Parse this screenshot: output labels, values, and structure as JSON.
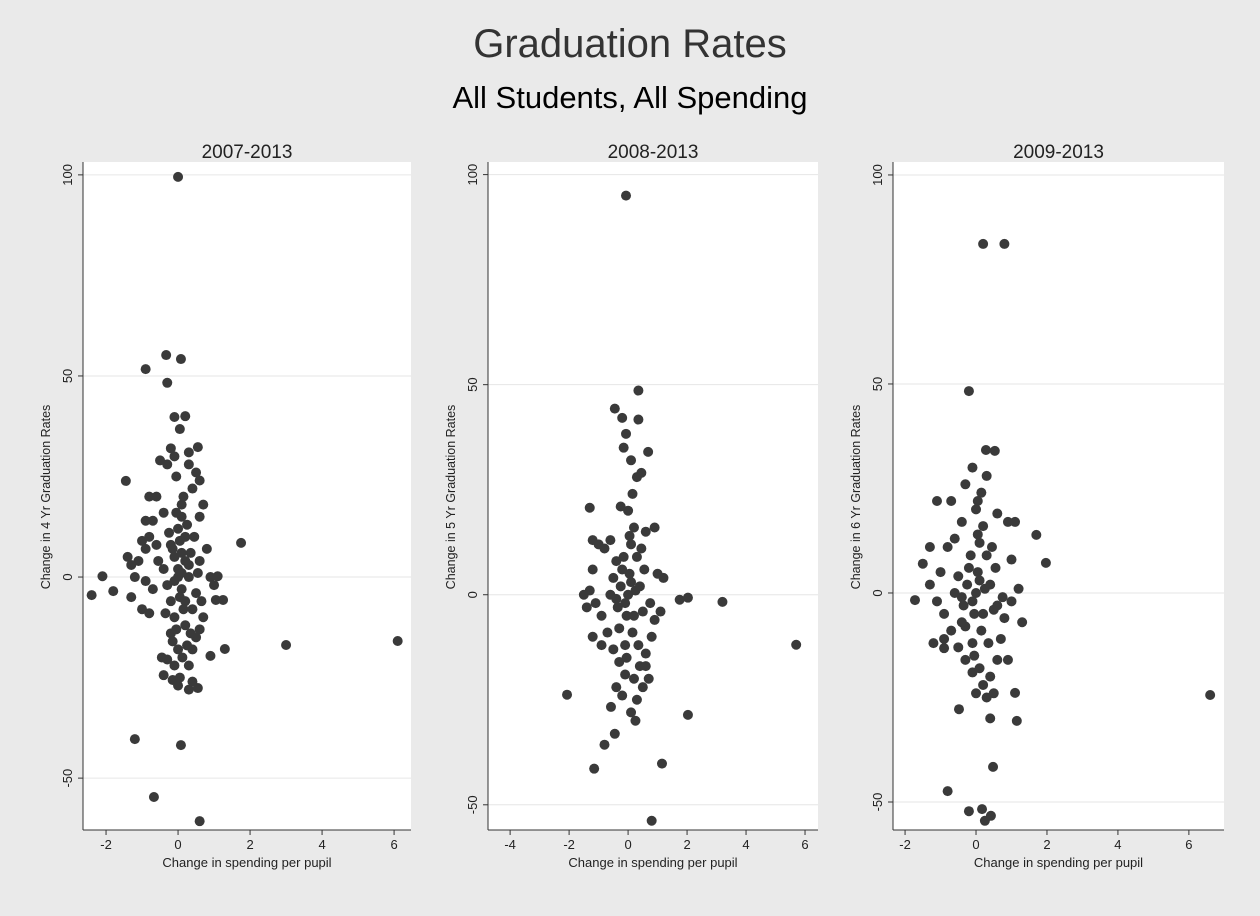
{
  "title": "Graduation Rates",
  "subtitle": "All Students, All Spending",
  "colors": {
    "marker": "#3a3a3a",
    "plot_bg": "#ffffff",
    "grid": "#e6e6e6",
    "page_bg": "#eaeaea"
  },
  "chart_data": [
    {
      "type": "scatter",
      "title": "2007-2013",
      "xlabel": "Change in spending per pupil",
      "ylabel": "Change in 4 Yr Graduation Rates",
      "xticks": [
        -2,
        0,
        2,
        4,
        6
      ],
      "yticks": [
        -50,
        0,
        50,
        100
      ],
      "xlim": [
        -2.64,
        6.47
      ],
      "ylim": [
        -62.9,
        103.2
      ],
      "grid": true,
      "points": [
        [
          0,
          99.5
        ],
        [
          -0.33,
          55.2
        ],
        [
          0.08,
          54.2
        ],
        [
          -0.9,
          51.7
        ],
        [
          -0.3,
          48.3
        ],
        [
          -0.1,
          39.8
        ],
        [
          0.05,
          36.8
        ],
        [
          0.55,
          32.3
        ],
        [
          -1.45,
          23.9
        ],
        [
          1.75,
          8.5
        ],
        [
          -2.4,
          -4.5
        ],
        [
          -2.1,
          0.2
        ],
        [
          -1.8,
          -3.5
        ],
        [
          3.0,
          -16.9
        ],
        [
          6.1,
          -15.9
        ],
        [
          1.3,
          -17.9
        ],
        [
          -1.2,
          -40.3
        ],
        [
          0.08,
          -41.8
        ],
        [
          -0.67,
          -54.7
        ],
        [
          0.6,
          -60.7
        ],
        [
          -0.45,
          -20
        ],
        [
          -0.3,
          -20.5
        ],
        [
          -0.4,
          -24.4
        ],
        [
          0,
          -27
        ],
        [
          0.3,
          -28
        ],
        [
          0.55,
          -27.6
        ],
        [
          -0.15,
          -25.6
        ],
        [
          0.9,
          -19.6
        ],
        [
          1.25,
          -5.7
        ],
        [
          1.05,
          -5.7
        ],
        [
          1.1,
          0.2
        ],
        [
          -0.1,
          5
        ],
        [
          0,
          2
        ],
        [
          0.1,
          -3
        ],
        [
          -0.2,
          8
        ],
        [
          0.2,
          -6
        ],
        [
          0,
          12
        ],
        [
          0.1,
          15
        ],
        [
          -0.1,
          -10
        ],
        [
          0.3,
          3
        ],
        [
          -0.3,
          -2
        ],
        [
          0.2,
          10
        ],
        [
          -0.2,
          -14
        ],
        [
          0.4,
          -8
        ],
        [
          0,
          -18
        ],
        [
          0.15,
          20
        ],
        [
          -0.05,
          25
        ],
        [
          0.3,
          28
        ],
        [
          -0.5,
          29
        ],
        [
          -0.3,
          28
        ],
        [
          0.5,
          26
        ],
        [
          0.6,
          24
        ],
        [
          0.4,
          22
        ],
        [
          0.7,
          18
        ],
        [
          0.1,
          18
        ],
        [
          -0.4,
          16
        ],
        [
          -0.9,
          14
        ],
        [
          -0.7,
          14
        ],
        [
          -1.0,
          9
        ],
        [
          -0.8,
          10
        ],
        [
          -0.6,
          8
        ],
        [
          -1.1,
          4
        ],
        [
          -1.3,
          3
        ],
        [
          -1.4,
          5
        ],
        [
          -1.2,
          0
        ],
        [
          -0.9,
          -1
        ],
        [
          -0.7,
          -3
        ],
        [
          -1.0,
          -8
        ],
        [
          -0.8,
          -9
        ],
        [
          -1.3,
          -5
        ],
        [
          0.8,
          7
        ],
        [
          0.9,
          0
        ],
        [
          1.0,
          -2
        ],
        [
          0.7,
          -10
        ],
        [
          0.6,
          -13
        ],
        [
          0.5,
          -15
        ],
        [
          0.4,
          -18
        ],
        [
          0.3,
          -22
        ],
        [
          -0.1,
          -22
        ],
        [
          0.2,
          -12
        ],
        [
          -0.2,
          -6
        ],
        [
          0.1,
          6
        ],
        [
          0.3,
          0
        ],
        [
          -0.4,
          2
        ],
        [
          0.5,
          -4
        ],
        [
          0.6,
          4
        ],
        [
          0.25,
          13
        ],
        [
          -0.15,
          -16
        ],
        [
          0.05,
          -25
        ],
        [
          0.35,
          -14
        ],
        [
          0.45,
          10
        ],
        [
          -0.35,
          -9
        ],
        [
          0.55,
          1
        ],
        [
          0.65,
          -6
        ],
        [
          -0.55,
          4
        ],
        [
          0,
          0
        ],
        [
          0.1,
          1
        ],
        [
          -0.1,
          -1
        ],
        [
          0.2,
          4
        ],
        [
          0.05,
          -5
        ],
        [
          0.6,
          15
        ],
        [
          0.3,
          31
        ],
        [
          -0.1,
          30
        ],
        [
          0.2,
          40
        ],
        [
          -0.2,
          32
        ],
        [
          0.4,
          -26
        ],
        [
          -0.9,
          7
        ],
        [
          -0.6,
          20
        ],
        [
          -0.8,
          20
        ],
        [
          -0.15,
          7
        ],
        [
          0.15,
          -8
        ],
        [
          -0.05,
          -13
        ],
        [
          0.25,
          -17
        ],
        [
          0.05,
          9
        ],
        [
          -0.25,
          11
        ],
        [
          0.35,
          6
        ],
        [
          -0.05,
          16
        ],
        [
          0.12,
          -20
        ]
      ]
    },
    {
      "type": "scatter",
      "title": "2008-2013",
      "xlabel": "Change in spending per pupil",
      "ylabel": "Change in 5 Yr Graduation Rates",
      "xticks": [
        -4,
        -2,
        0,
        2,
        4,
        6
      ],
      "yticks": [
        -50,
        0,
        50,
        100
      ],
      "xlim": [
        -4.75,
        6.44
      ],
      "ylim": [
        -56,
        103
      ],
      "grid": true,
      "points": [
        [
          -0.07,
          95
        ],
        [
          0.35,
          48.6
        ],
        [
          -0.45,
          44.3
        ],
        [
          -0.2,
          42.1
        ],
        [
          0.35,
          41.7
        ],
        [
          -0.07,
          38.3
        ],
        [
          0.68,
          34
        ],
        [
          -1.3,
          20.7
        ],
        [
          3.2,
          -1.7
        ],
        [
          5.7,
          -11.9
        ],
        [
          -2.07,
          -23.8
        ],
        [
          2.03,
          -28.6
        ],
        [
          -0.58,
          -26.7
        ],
        [
          -0.8,
          -35.7
        ],
        [
          -0.45,
          -33.1
        ],
        [
          -1.15,
          -41.4
        ],
        [
          1.15,
          -40.2
        ],
        [
          0.8,
          -53.8
        ],
        [
          2.03,
          -0.7
        ],
        [
          1.75,
          -1.2
        ],
        [
          0,
          0
        ],
        [
          0.1,
          3
        ],
        [
          -0.1,
          -2
        ],
        [
          0.2,
          -5
        ],
        [
          -0.2,
          6
        ],
        [
          0.3,
          9
        ],
        [
          -0.3,
          -8
        ],
        [
          0.1,
          12
        ],
        [
          -0.1,
          -12
        ],
        [
          0.4,
          2
        ],
        [
          -0.4,
          -1
        ],
        [
          0.5,
          -4
        ],
        [
          -0.5,
          4
        ],
        [
          0.2,
          16
        ],
        [
          0,
          20
        ],
        [
          0.15,
          24
        ],
        [
          0.3,
          28
        ],
        [
          0.45,
          29
        ],
        [
          0.1,
          32
        ],
        [
          -0.15,
          35
        ],
        [
          -0.25,
          21
        ],
        [
          0.6,
          15
        ],
        [
          0.9,
          16
        ],
        [
          1.0,
          5
        ],
        [
          1.2,
          4
        ],
        [
          1.1,
          -4
        ],
        [
          0.9,
          -6
        ],
        [
          0.8,
          -10
        ],
        [
          0.6,
          -14
        ],
        [
          0.4,
          -17
        ],
        [
          0.2,
          -20
        ],
        [
          -0.1,
          -19
        ],
        [
          -0.3,
          -16
        ],
        [
          -0.5,
          -13
        ],
        [
          -0.7,
          -9
        ],
        [
          -0.9,
          -5
        ],
        [
          -1.1,
          -2
        ],
        [
          -1.3,
          1
        ],
        [
          -1.5,
          0
        ],
        [
          -1.2,
          6
        ],
        [
          -1.0,
          12
        ],
        [
          -1.2,
          13
        ],
        [
          -0.8,
          11
        ],
        [
          -0.6,
          13
        ],
        [
          -0.4,
          8
        ],
        [
          -1.4,
          -3
        ],
        [
          -1.2,
          -10
        ],
        [
          -0.9,
          -12
        ],
        [
          0.7,
          -20
        ],
        [
          0.5,
          -22
        ],
        [
          0.3,
          -25
        ],
        [
          -0.2,
          -24
        ],
        [
          0.1,
          -28
        ],
        [
          -0.4,
          -22
        ],
        [
          0.6,
          -17
        ],
        [
          0.05,
          5
        ],
        [
          -0.05,
          -5
        ],
        [
          0.25,
          1
        ],
        [
          -0.25,
          2
        ],
        [
          0.15,
          -9
        ],
        [
          -0.15,
          9
        ],
        [
          0.35,
          -12
        ],
        [
          0.55,
          6
        ],
        [
          -0.35,
          -3
        ],
        [
          0.05,
          14
        ],
        [
          -0.05,
          -15
        ],
        [
          0.45,
          11
        ],
        [
          0.75,
          -2
        ],
        [
          -0.6,
          0
        ],
        [
          0.25,
          -30
        ]
      ]
    },
    {
      "type": "scatter",
      "title": "2009-2013",
      "xlabel": "Change in spending per pupil",
      "ylabel": "Change in 6 Yr Graduation Rates",
      "xticks": [
        -2,
        0,
        2,
        4,
        6
      ],
      "yticks": [
        -50,
        0,
        50,
        100
      ],
      "xlim": [
        -2.34,
        6.99
      ],
      "ylim": [
        -56.7,
        103.1
      ],
      "grid": true,
      "points": [
        [
          0.2,
          83.5
        ],
        [
          0.8,
          83.5
        ],
        [
          -0.2,
          48.3
        ],
        [
          0.28,
          34.2
        ],
        [
          0.53,
          34
        ],
        [
          6.6,
          -24.4
        ],
        [
          -0.8,
          -47.4
        ],
        [
          -0.2,
          -52.2
        ],
        [
          0.17,
          -51.7
        ],
        [
          0.25,
          -54.5
        ],
        [
          0.42,
          -53.3
        ],
        [
          0.48,
          -41.6
        ],
        [
          -1.1,
          22
        ],
        [
          1.97,
          7.2
        ],
        [
          1.7,
          13.9
        ],
        [
          -1.72,
          -1.7
        ],
        [
          1.15,
          -30.6
        ],
        [
          1.1,
          -23.9
        ],
        [
          -0.48,
          -27.8
        ],
        [
          -0.9,
          -13.2
        ],
        [
          0,
          0
        ],
        [
          0.1,
          3
        ],
        [
          -0.1,
          -2
        ],
        [
          0.2,
          -5
        ],
        [
          -0.2,
          6
        ],
        [
          0.3,
          9
        ],
        [
          -0.3,
          -8
        ],
        [
          0.1,
          12
        ],
        [
          -0.1,
          -12
        ],
        [
          0.4,
          2
        ],
        [
          -0.4,
          -1
        ],
        [
          0.5,
          -4
        ],
        [
          -0.5,
          4
        ],
        [
          0.2,
          16
        ],
        [
          0,
          20
        ],
        [
          0.15,
          24
        ],
        [
          0.3,
          28
        ],
        [
          -0.3,
          26
        ],
        [
          -0.1,
          30
        ],
        [
          0.05,
          22
        ],
        [
          0.6,
          19
        ],
        [
          0.9,
          17
        ],
        [
          1.1,
          17
        ],
        [
          1.0,
          8
        ],
        [
          1.2,
          1
        ],
        [
          1.0,
          -2
        ],
        [
          0.8,
          -6
        ],
        [
          0.7,
          -11
        ],
        [
          0.6,
          -16
        ],
        [
          0.4,
          -20
        ],
        [
          0.2,
          -22
        ],
        [
          -0.1,
          -19
        ],
        [
          -0.3,
          -16
        ],
        [
          -0.5,
          -13
        ],
        [
          -0.7,
          -9
        ],
        [
          -0.9,
          -5
        ],
        [
          -1.1,
          -2
        ],
        [
          -1.3,
          2
        ],
        [
          -1.5,
          7
        ],
        [
          -1.3,
          11
        ],
        [
          -1.0,
          5
        ],
        [
          -0.8,
          11
        ],
        [
          -0.6,
          13
        ],
        [
          -0.4,
          17
        ],
        [
          -1.2,
          -12
        ],
        [
          -0.9,
          -11
        ],
        [
          0.9,
          -16
        ],
        [
          0.5,
          -24
        ],
        [
          0.3,
          -25
        ],
        [
          0,
          -24
        ],
        [
          0.1,
          -18
        ],
        [
          -0.4,
          -7
        ],
        [
          0.6,
          -3
        ],
        [
          0.05,
          5
        ],
        [
          -0.05,
          -5
        ],
        [
          0.25,
          1
        ],
        [
          -0.25,
          2
        ],
        [
          0.15,
          -9
        ],
        [
          -0.15,
          9
        ],
        [
          0.35,
          -12
        ],
        [
          0.55,
          6
        ],
        [
          -0.35,
          -3
        ],
        [
          0.05,
          14
        ],
        [
          -0.05,
          -15
        ],
        [
          0.45,
          11
        ],
        [
          0.75,
          -1
        ],
        [
          -0.6,
          0
        ],
        [
          1.3,
          -7
        ],
        [
          -0.7,
          22
        ],
        [
          0.4,
          -30
        ]
      ]
    }
  ]
}
